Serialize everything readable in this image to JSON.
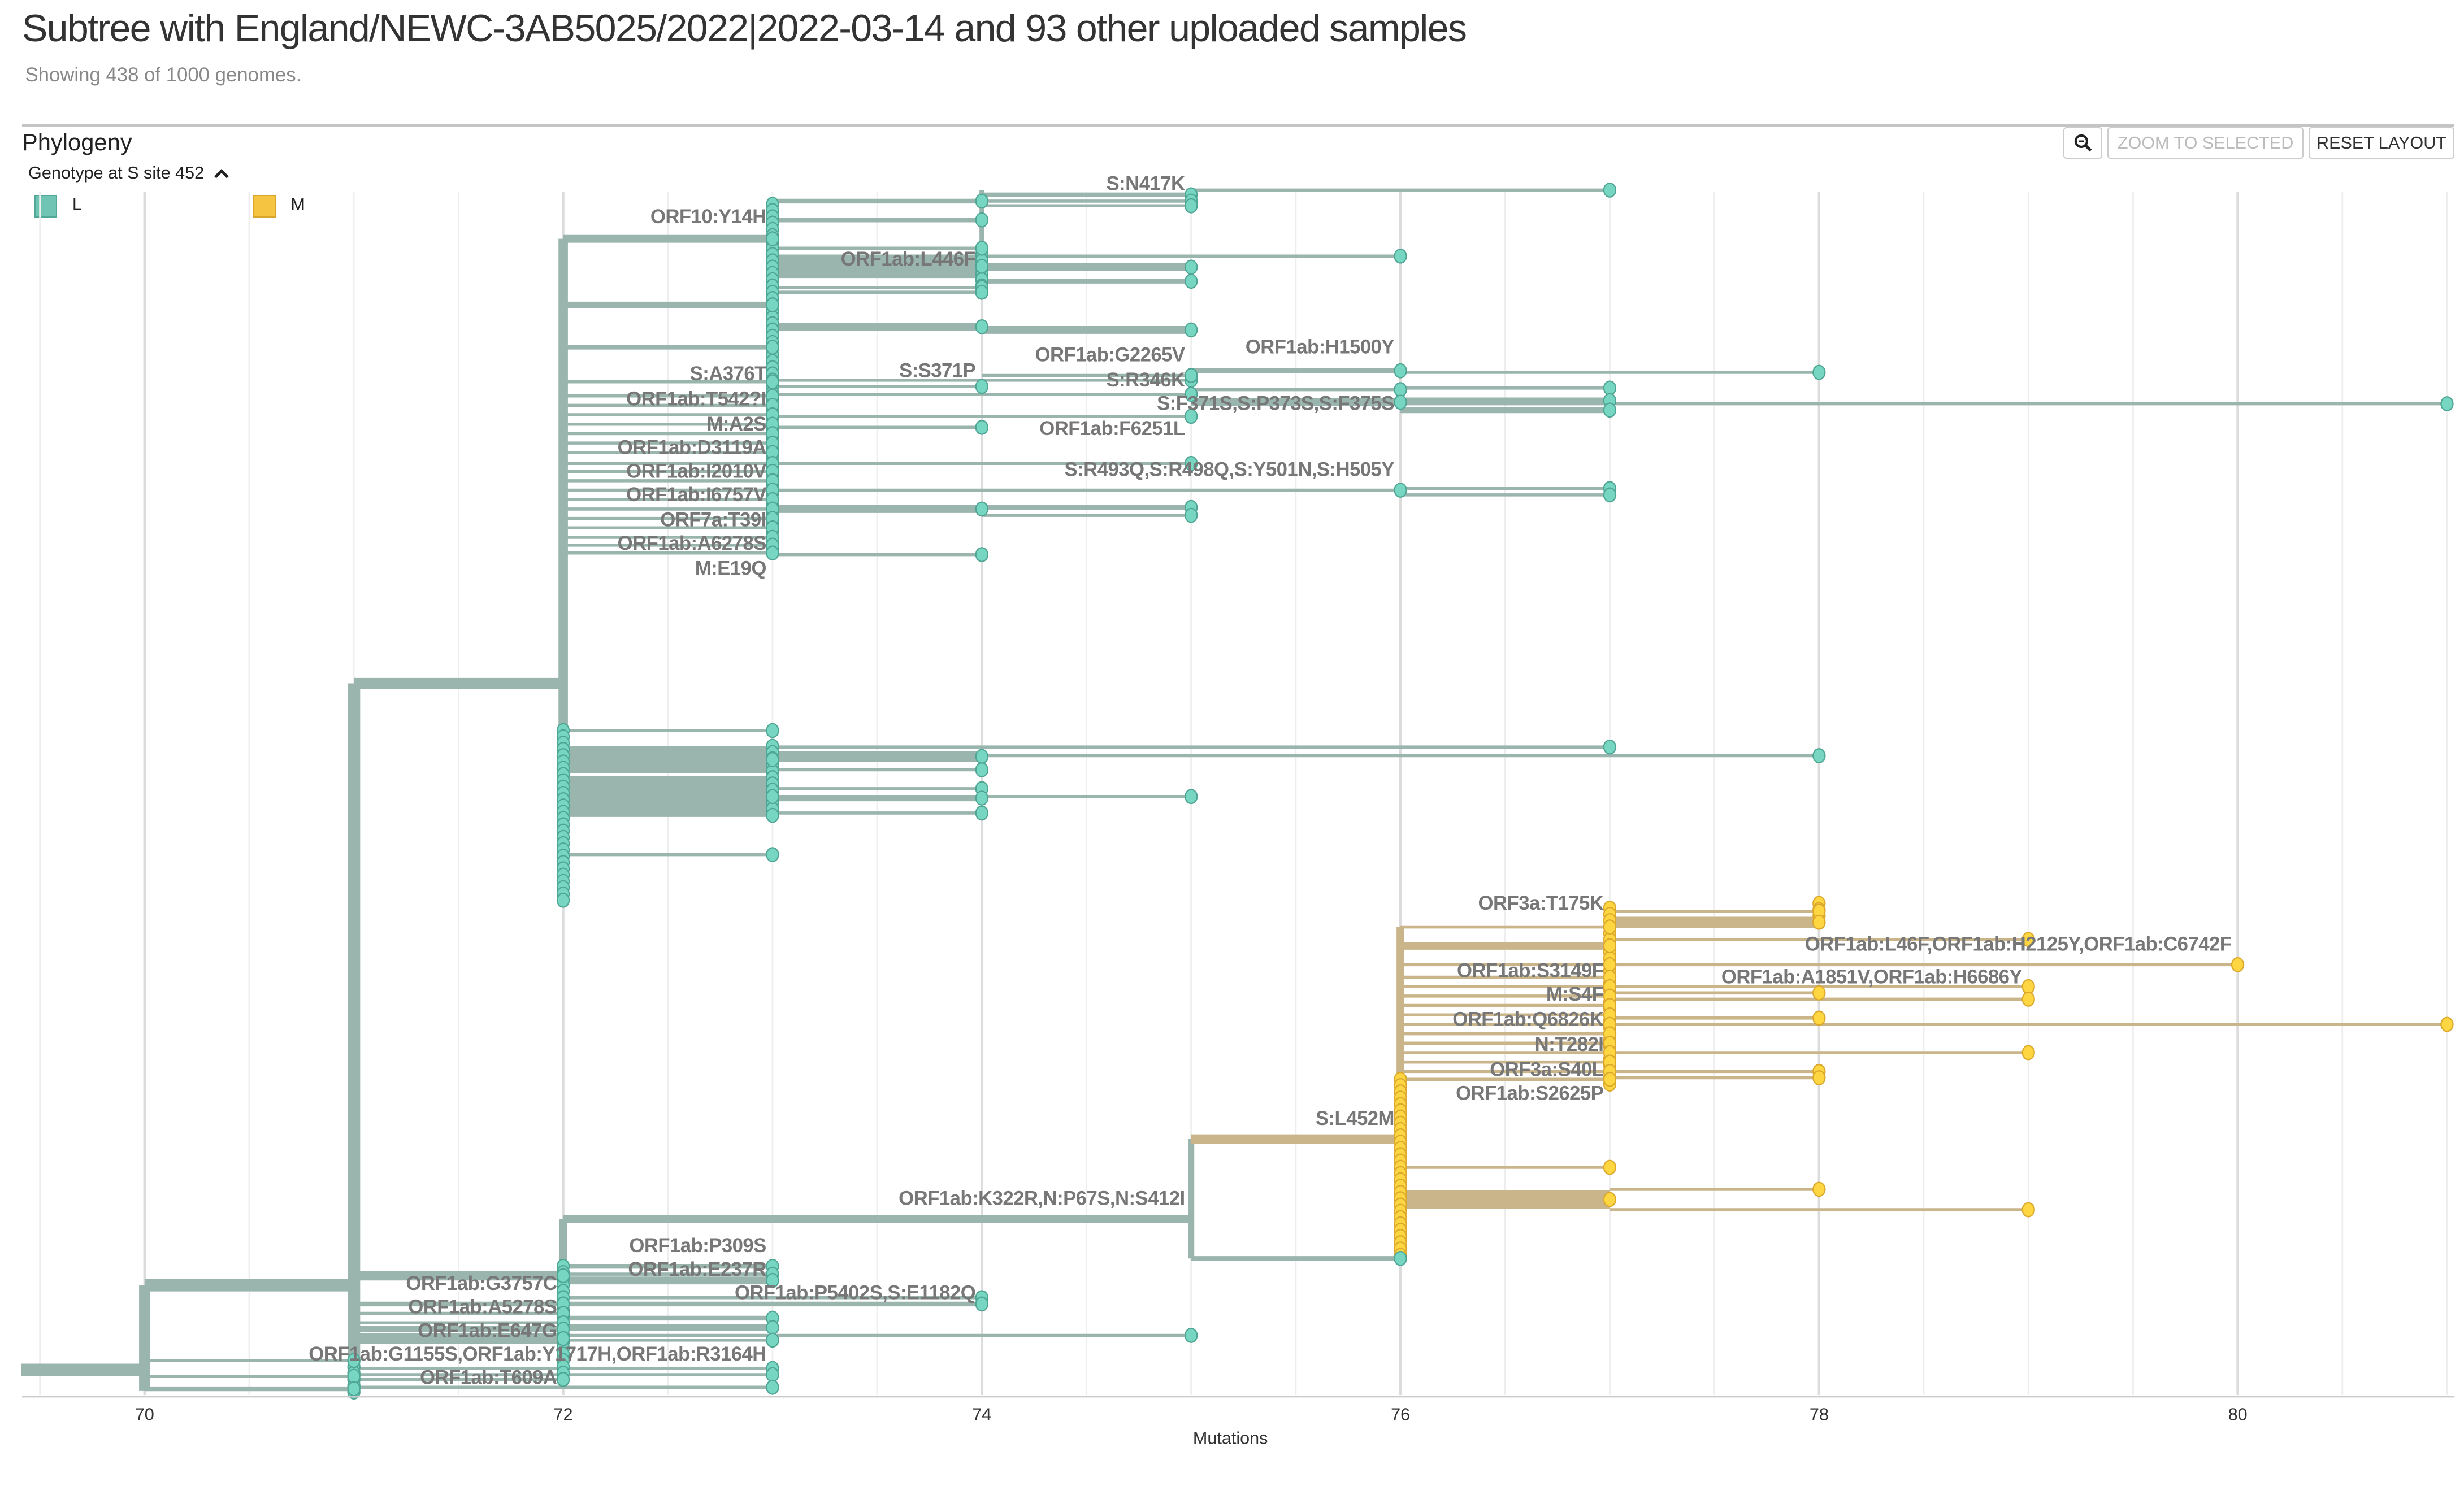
{
  "header": {
    "title": "Subtree with England/NEWC-3AB5025/2022|2022-03-14 and 93 other uploaded samples",
    "subtitle": "Showing 438 of 1000 genomes."
  },
  "panel": {
    "title": "Phylogeny",
    "zoom_icon": "magnifier-icon",
    "zoom_to_selected_label": "ZOOM TO SELECTED",
    "reset_layout_label": "RESET LAYOUT"
  },
  "legend": {
    "title": "Genotype at S site 452",
    "toggle_icon": "chevron-up-icon",
    "items": [
      {
        "label": "L",
        "color": "#6fc4b3"
      },
      {
        "label": "M",
        "color": "#f5c542"
      }
    ]
  },
  "chart_data": {
    "type": "tree",
    "xlabel": "Mutations",
    "xlim": [
      69.4,
      81
    ],
    "x_ticks": [
      "70",
      "72",
      "74",
      "76",
      "78",
      "80"
    ],
    "grid": true,
    "colors": {
      "L_branch": "#9ab5ae",
      "L_node": "#76d6c2",
      "M_branch": "#c9b589",
      "M_node": "#fdd642"
    },
    "mutation_labels": [
      {
        "text": "S:N417K",
        "mutations": 75
      },
      {
        "text": "ORF10:Y14H",
        "mutations": 73
      },
      {
        "text": "ORF1ab:L446F",
        "mutations": 74
      },
      {
        "text": "ORF1ab:H1500Y",
        "mutations": 76
      },
      {
        "text": "ORF1ab:G2265V",
        "mutations": 75
      },
      {
        "text": "S:A376T",
        "mutations": 73
      },
      {
        "text": "S:S371P",
        "mutations": 74
      },
      {
        "text": "S:R346K",
        "mutations": 75
      },
      {
        "text": "S:F371S,S:P373S,S:F375S",
        "mutations": 76
      },
      {
        "text": "ORF1ab:T542?I",
        "mutations": 73
      },
      {
        "text": "ORF1ab:F6251L",
        "mutations": 75
      },
      {
        "text": "M:A2S",
        "mutations": 73
      },
      {
        "text": "ORF1ab:D3119A",
        "mutations": 73
      },
      {
        "text": "ORF1ab:I2010V",
        "mutations": 73
      },
      {
        "text": "ORF1ab:I6757V",
        "mutations": 73
      },
      {
        "text": "S:R493Q,S:R498Q,S:Y501N,S:H505Y",
        "mutations": 76
      },
      {
        "text": "ORF7a:T39I",
        "mutations": 73
      },
      {
        "text": "ORF1ab:A6278S",
        "mutations": 73
      },
      {
        "text": "M:E19Q",
        "mutations": 73
      },
      {
        "text": "ORF3a:T175K",
        "mutations": 77
      },
      {
        "text": "ORF1ab:L46F,ORF1ab:H2125Y,ORF1ab:C6742F",
        "mutations": 80
      },
      {
        "text": "ORF1ab:S3149F",
        "mutations": 77
      },
      {
        "text": "ORF1ab:A1851V,ORF1ab:H6686Y",
        "mutations": 79
      },
      {
        "text": "M:S4F",
        "mutations": 77
      },
      {
        "text": "ORF1ab:Q6826K",
        "mutations": 77
      },
      {
        "text": "N:T282I",
        "mutations": 77
      },
      {
        "text": "ORF3a:S40L",
        "mutations": 77
      },
      {
        "text": "ORF1ab:S2625P",
        "mutations": 77
      },
      {
        "text": "S:L452M",
        "mutations": 76
      },
      {
        "text": "ORF1ab:K322R,N:P67S,N:S412I",
        "mutations": 75
      },
      {
        "text": "ORF1ab:P309S",
        "mutations": 73
      },
      {
        "text": "ORF1ab:E237R",
        "mutations": 73
      },
      {
        "text": "ORF1ab:P5402S,S:E1182Q",
        "mutations": 74
      },
      {
        "text": "ORF1ab:G3757C",
        "mutations": 72
      },
      {
        "text": "ORF1ab:A5278S",
        "mutations": 72
      },
      {
        "text": "ORF1ab:E647G",
        "mutations": 72
      },
      {
        "text": "ORF1ab:G1155S,ORF1ab:Y1717H,ORF1ab:R3164H",
        "mutations": 73
      },
      {
        "text": "ORF1ab:T609A",
        "mutations": 72
      }
    ]
  }
}
